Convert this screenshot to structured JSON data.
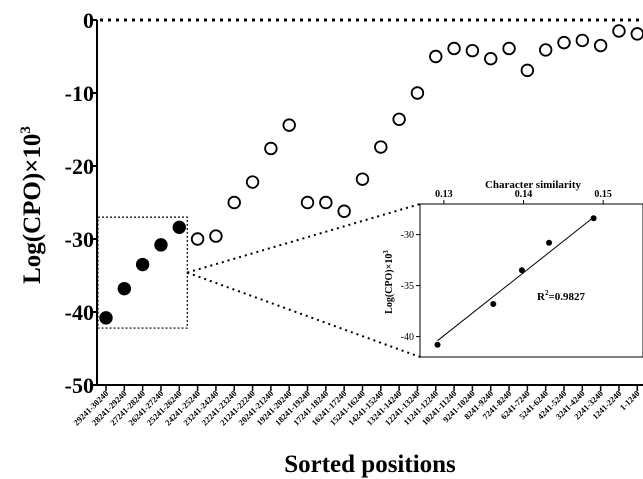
{
  "chart_data": {
    "type": "scatter",
    "xlabel": "Sorted positions",
    "ylabel": "Log(CPO)×10",
    "ylabel_sup": "3",
    "ylim": [
      -50,
      0
    ],
    "yticks": [
      0,
      -10,
      -20,
      -30,
      -40,
      -50
    ],
    "categories": [
      "29241-30240",
      "28241-29240",
      "27241-28240",
      "26241-27240",
      "25241-26240",
      "24241-25240",
      "23241-24240",
      "22241-23240",
      "21241-22240",
      "20241-21240",
      "19241-20240",
      "18241-19240",
      "17241-18240",
      "16241-17240",
      "15241-16240",
      "14241-15240",
      "13241-14240",
      "12241-13240",
      "11241-12240",
      "10241-11240",
      "9241-10240",
      "8241-9240",
      "7241-8240",
      "6241-7240",
      "5241-6240",
      "4241-5240",
      "3241-4240",
      "2241-3240",
      "1241-2240",
      "1-1240"
    ],
    "series": [
      {
        "marker": "filled",
        "values": [
          -40.8,
          -36.8,
          -33.5,
          -30.8,
          -28.4
        ]
      },
      {
        "marker": "open",
        "values": [
          -30.0,
          -29.6,
          -25.0,
          -22.2,
          -17.6,
          -14.4,
          -25.0,
          -25.0,
          -26.2,
          -21.8,
          -17.4,
          -13.6,
          -10.0,
          -5.0,
          -3.9,
          -4.2,
          -5.3,
          -3.9,
          -6.9,
          -4.1,
          -3.1,
          -2.8,
          -3.5,
          -1.5,
          -1.9
        ]
      }
    ],
    "reference_line_y": 0,
    "highlight_box": {
      "category_range": [
        0,
        4
      ],
      "y_range": [
        -42.2,
        -27.0
      ]
    },
    "inset": {
      "type": "scatter",
      "xlabel": "Character similarity",
      "ylabel": "Log(CPO)×10",
      "ylabel_sup": "3",
      "xlim": [
        0.127,
        0.155
      ],
      "ylim": [
        -42,
        -27
      ],
      "xticks": [
        "0.13",
        "0.14",
        "0.15"
      ],
      "yticks": [
        "-30",
        "-35",
        "-40"
      ],
      "x": [
        0.1292,
        0.1362,
        0.1398,
        0.1432,
        0.1488
      ],
      "y": [
        -40.8,
        -36.8,
        -33.5,
        -30.8,
        -28.4
      ],
      "fit_line": {
        "x": [
          0.1292,
          0.1488
        ],
        "y": [
          -40.4,
          -28.3
        ]
      },
      "annotation": "R",
      "annotation_sup": "2",
      "annotation_value": "=0.9827"
    }
  }
}
